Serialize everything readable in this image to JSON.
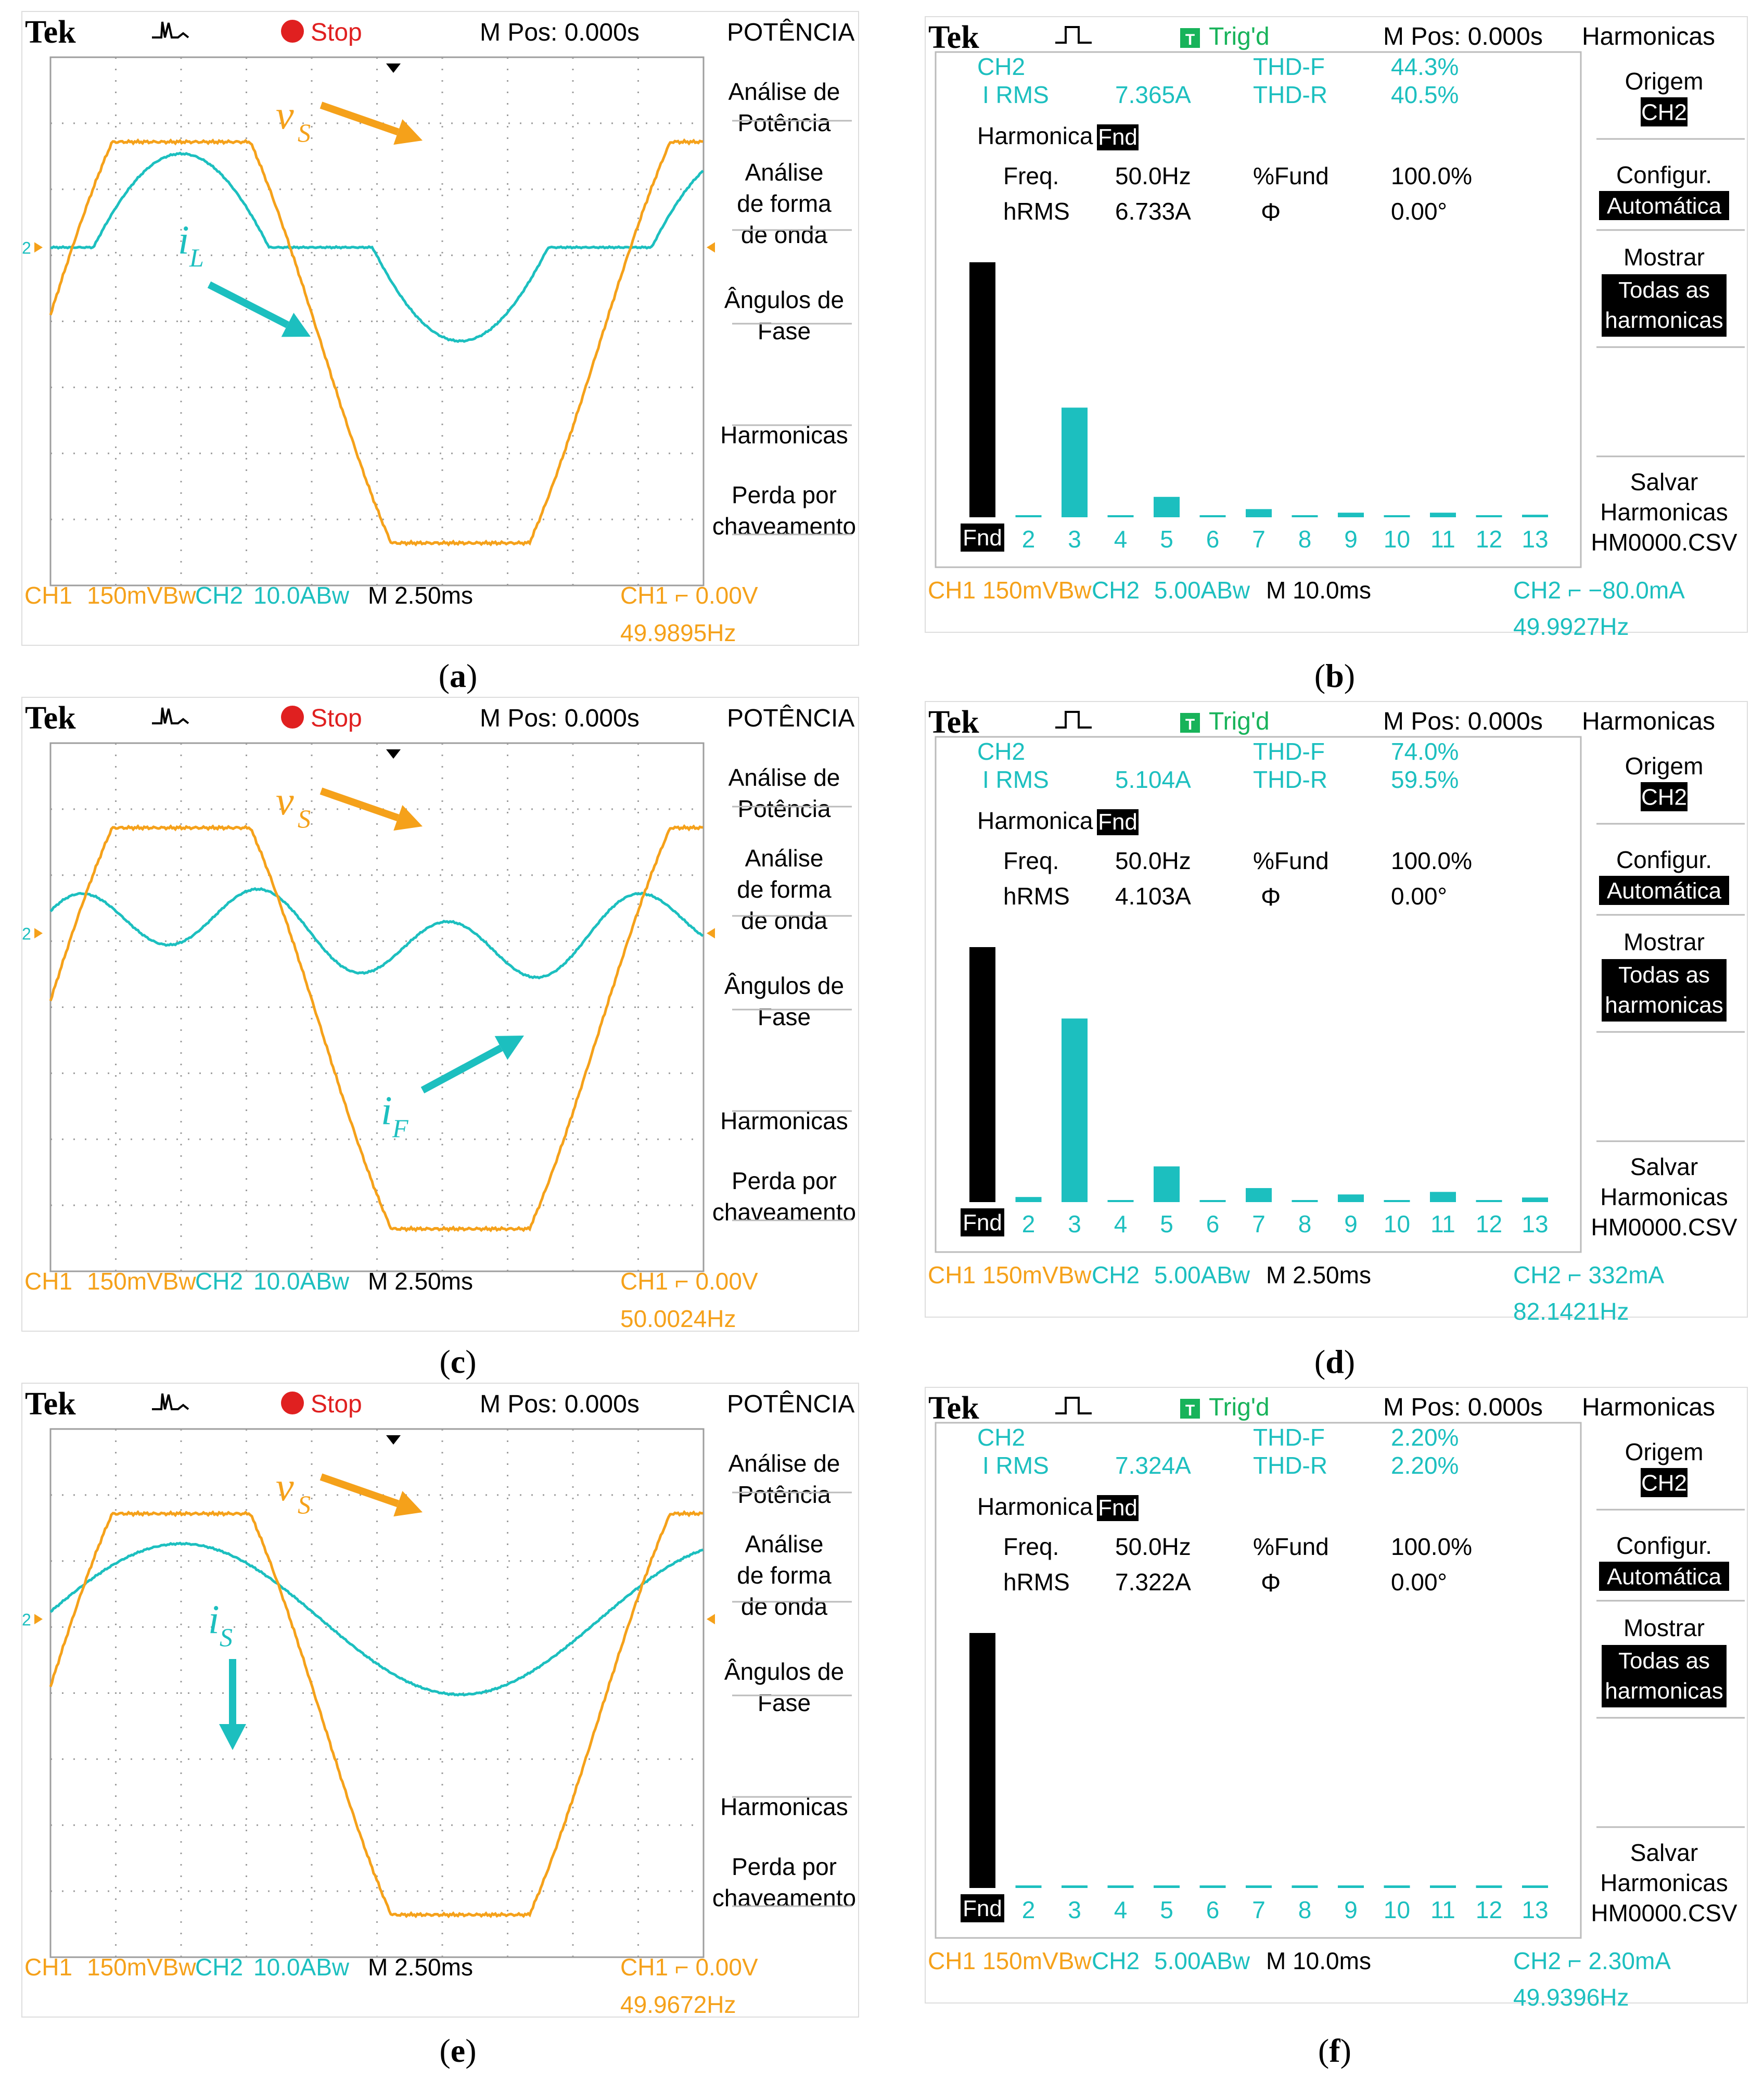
{
  "labels": {
    "a": "a",
    "b": "b",
    "c": "c",
    "d": "d",
    "e": "e",
    "f": "f"
  },
  "colors": {
    "orange": "#F5A11A",
    "cyan": "#1CBFBF",
    "grid": "#9E9E9E",
    "bg": "#FFFFFF",
    "text": "#000000",
    "red": "#E02020",
    "green": "#18B35A"
  },
  "scope_common": {
    "brand": "Tek",
    "stop": "Stop",
    "mpos": "M Pos: 0.000s",
    "menu_title": "POTÊNCIA",
    "menu": [
      "Análise de\nPotência",
      "Análise\nde forma\nde onda",
      "Ângulos de\nFase",
      "Harmonicas",
      "Perda por\nchaveamento"
    ],
    "ch1": "CH1",
    "ch1_scale": "150mVBw",
    "ch2": "CH2",
    "ch2_scale": "10.0ABw",
    "timebase": "M 2.50ms",
    "trigger": "CH1 ⌐ 0.00V"
  },
  "harm_common": {
    "brand": "Tek",
    "trig": "Trig'd",
    "mpos": "M Pos: 0.000s",
    "menu_title": "Harmonicas",
    "origem": "Origem",
    "origem_val": "CH2",
    "config": "Configur.",
    "config_val": "Automática",
    "mostrar": "Mostrar",
    "mostrar_val": "Todas as\nharmonicas",
    "salvar": "Salvar\nHarmonicas\nHM0000.CSV",
    "ch_label": "CH2",
    "irms_label": "I RMS",
    "thdf_label": "THD-F",
    "thdr_label": "THD-R",
    "harmonica_label": "Harmonica",
    "fnd": "Fnd",
    "freq_label": "Freq.",
    "freq_val": "50.0Hz",
    "pfund_label": "%Fund",
    "pfund_val": "100.0%",
    "hrms_label": "hRMS",
    "phi_label": "Φ",
    "phi_val": "0.00°",
    "ch1": "CH1",
    "ch1_scale": "150mVBw",
    "ch2": "CH2",
    "ch2_scale": "5.00ABw",
    "orders": [
      "Fnd",
      "2",
      "3",
      "4",
      "5",
      "6",
      "7",
      "8",
      "9",
      "10",
      "11",
      "12",
      "13"
    ]
  },
  "panels": {
    "a": {
      "freq": "49.9895Hz",
      "annot_v": "vS",
      "annot_i": "iL"
    },
    "c": {
      "freq": "50.0024Hz",
      "annot_v": "vS",
      "annot_i": "iF"
    },
    "e": {
      "freq": "49.9672Hz",
      "annot_v": "vS",
      "annot_i": "iS"
    },
    "b": {
      "irms": "7.365A",
      "thdf": "44.3%",
      "thdr": "40.5%",
      "hrms": "6.733A",
      "timebase": "M 10.0ms",
      "trigger": "CH2 ⌐ −80.0mA",
      "freq": "49.9927Hz",
      "harmonics_pct": [
        100,
        0.8,
        43,
        0.6,
        8,
        0.4,
        3.2,
        0.5,
        1.8,
        0.5,
        1.8,
        0.4,
        1.0
      ]
    },
    "d": {
      "irms": "5.104A",
      "thdf": "74.0%",
      "thdr": "59.5%",
      "hrms": "4.103A",
      "timebase": "M 2.50ms",
      "trigger": "CH2 ⌐ 332mA",
      "freq": "82.1421Hz",
      "harmonics_pct": [
        100,
        2,
        72,
        0.8,
        14,
        0.8,
        5.5,
        0.8,
        3,
        0.8,
        4,
        0.8,
        1.8
      ]
    },
    "f": {
      "irms": "7.324A",
      "thdf": "2.20%",
      "thdr": "2.20%",
      "hrms": "7.322A",
      "timebase": "M 10.0ms",
      "trigger": "CH2 ⌐ 2.30mA",
      "freq": "49.9396Hz",
      "harmonics_pct": [
        100,
        1,
        1,
        1,
        1,
        1,
        1,
        1,
        1,
        1,
        1,
        1,
        1
      ]
    }
  }
}
